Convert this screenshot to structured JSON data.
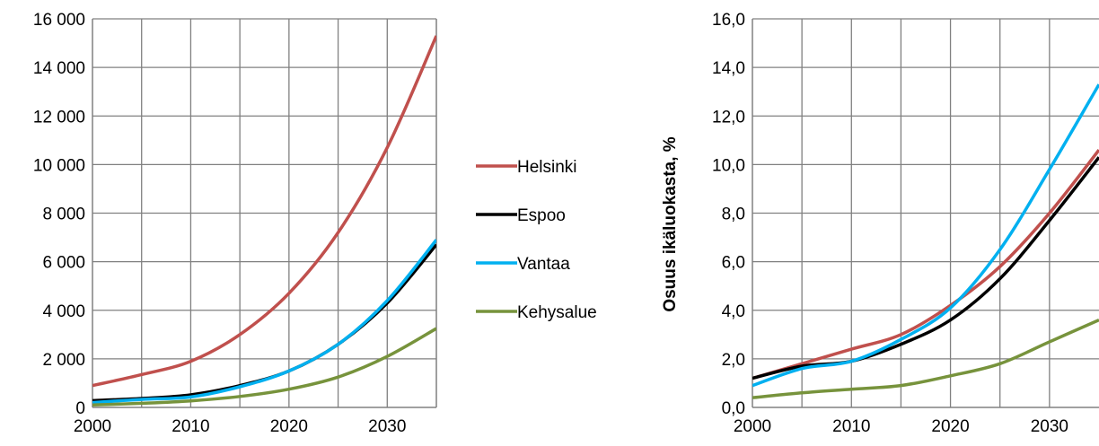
{
  "colors": {
    "Helsinki": "#c0504d",
    "Espoo": "#000000",
    "Vantaa": "#00b0f0",
    "Kehysalue": "#77933c",
    "grid": "#808080"
  },
  "legend": [
    "Helsinki",
    "Espoo",
    "Vantaa",
    "Kehysalue"
  ],
  "chart_data": [
    {
      "type": "line",
      "title": "",
      "xlabel": "",
      "ylabel": "",
      "xlim": [
        2000,
        2035
      ],
      "ylim": [
        0,
        16000
      ],
      "grid": true,
      "legend_position": "right",
      "x_ticks": [
        2000,
        2010,
        2020,
        2030
      ],
      "x_tick_labels": [
        "2000",
        "2010",
        "2020",
        "2030"
      ],
      "y_ticks": [
        0,
        2000,
        4000,
        6000,
        8000,
        10000,
        12000,
        14000,
        16000
      ],
      "y_tick_labels": [
        "0",
        "2 000",
        "4 000",
        "6 000",
        "8 000",
        "10 000",
        "12 000",
        "14 000",
        "16 000"
      ],
      "x": [
        2000,
        2005,
        2010,
        2015,
        2020,
        2025,
        2030,
        2035
      ],
      "series": [
        {
          "name": "Helsinki",
          "values": [
            900,
            1350,
            1900,
            3000,
            4700,
            7200,
            10700,
            15300
          ]
        },
        {
          "name": "Espoo",
          "values": [
            280,
            370,
            520,
            900,
            1500,
            2600,
            4300,
            6700
          ]
        },
        {
          "name": "Vantaa",
          "values": [
            200,
            330,
            430,
            850,
            1500,
            2600,
            4400,
            6900
          ]
        },
        {
          "name": "Kehysalue",
          "values": [
            100,
            170,
            270,
            450,
            750,
            1250,
            2100,
            3250
          ]
        }
      ]
    },
    {
      "type": "line",
      "title": "",
      "xlabel": "",
      "ylabel": "Osuus ikäluokasta, %",
      "xlim": [
        2000,
        2035
      ],
      "ylim": [
        0,
        16
      ],
      "grid": true,
      "x_ticks": [
        2000,
        2010,
        2020,
        2030
      ],
      "x_tick_labels": [
        "2000",
        "2010",
        "2020",
        "2030"
      ],
      "y_ticks": [
        0,
        2,
        4,
        6,
        8,
        10,
        12,
        14,
        16
      ],
      "y_tick_labels": [
        "0,0",
        "2,0",
        "4,0",
        "6,0",
        "8,0",
        "10,0",
        "12,0",
        "14,0",
        "16,0"
      ],
      "x": [
        2000,
        2005,
        2010,
        2015,
        2020,
        2025,
        2030,
        2035
      ],
      "series": [
        {
          "name": "Helsinki",
          "values": [
            1.2,
            1.8,
            2.4,
            3.0,
            4.2,
            5.8,
            8.0,
            10.6
          ]
        },
        {
          "name": "Espoo",
          "values": [
            1.2,
            1.7,
            1.9,
            2.6,
            3.6,
            5.3,
            7.7,
            10.3
          ]
        },
        {
          "name": "Vantaa",
          "values": [
            0.9,
            1.6,
            1.9,
            2.8,
            4.1,
            6.5,
            9.8,
            13.3
          ]
        },
        {
          "name": "Kehysalue",
          "values": [
            0.4,
            0.6,
            0.75,
            0.9,
            1.3,
            1.8,
            2.7,
            3.6
          ]
        }
      ]
    }
  ]
}
